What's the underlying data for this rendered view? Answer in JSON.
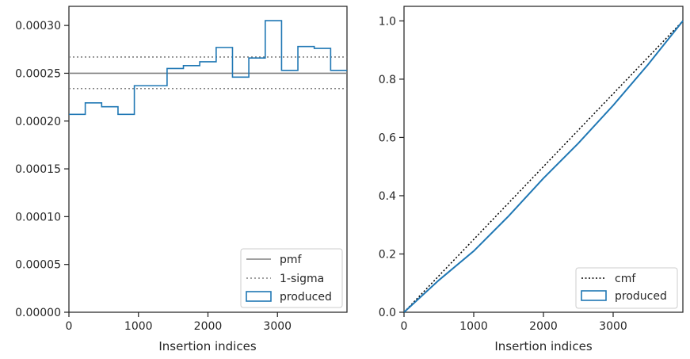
{
  "chart_data": [
    {
      "type": "step",
      "xlabel": "Insertion indices",
      "ylabel": "",
      "xlim": [
        0,
        4000
      ],
      "ylim": [
        0,
        0.00032
      ],
      "x_ticks": [
        0,
        1000,
        2000,
        3000
      ],
      "x_tick_labels": [
        "0",
        "1000",
        "2000",
        "3000"
      ],
      "y_ticks": [
        0,
        5e-05,
        0.0001,
        0.00015,
        0.0002,
        0.00025,
        0.0003
      ],
      "y_tick_labels": [
        "0.00000",
        "0.00005",
        "0.00010",
        "0.00015",
        "0.00020",
        "0.00025",
        "0.00030"
      ],
      "legend_position": "lower-right",
      "pmf": 0.00025,
      "sigma_low": 0.000234,
      "sigma_high": 0.000267,
      "produced": {
        "bin_edges": [
          0,
          235,
          471,
          706,
          941,
          1176,
          1412,
          1647,
          1882,
          2118,
          2353,
          2588,
          2824,
          3059,
          3294,
          3529,
          3765,
          4000
        ],
        "values": [
          0.000207,
          0.000219,
          0.000215,
          0.000207,
          0.000237,
          0.000237,
          0.000255,
          0.000258,
          0.000262,
          0.000277,
          0.000246,
          0.000266,
          0.000305,
          0.000253,
          0.000278,
          0.000276,
          0.000253
        ]
      },
      "series": [
        {
          "name": "pmf",
          "color": "#808080",
          "style": "solid"
        },
        {
          "name": "1-sigma",
          "color": "#808080",
          "style": "dotted"
        },
        {
          "name": "produced",
          "color": "#1f77b4",
          "style": "step"
        }
      ]
    },
    {
      "type": "line",
      "xlabel": "Insertion indices",
      "ylabel": "",
      "xlim": [
        0,
        4000
      ],
      "ylim": [
        0,
        1.05
      ],
      "x_ticks": [
        0,
        1000,
        2000,
        3000
      ],
      "x_tick_labels": [
        "0",
        "1000",
        "2000",
        "3000"
      ],
      "y_ticks": [
        0,
        0.2,
        0.4,
        0.6,
        0.8,
        1.0
      ],
      "y_tick_labels": [
        "0.0",
        "0.2",
        "0.4",
        "0.6",
        "0.8",
        "1.0"
      ],
      "legend_position": "lower-right",
      "cmf": {
        "x": [
          0,
          4000
        ],
        "y": [
          0,
          1.0
        ]
      },
      "produced": {
        "x": [
          0,
          500,
          1000,
          1500,
          2000,
          2500,
          3000,
          3500,
          4000
        ],
        "y": [
          0,
          0.11,
          0.21,
          0.33,
          0.46,
          0.58,
          0.71,
          0.85,
          1.0
        ]
      },
      "series": [
        {
          "name": "cmf",
          "color": "#000000",
          "style": "dotted"
        },
        {
          "name": "produced",
          "color": "#1f77b4",
          "style": "solid"
        }
      ]
    }
  ]
}
